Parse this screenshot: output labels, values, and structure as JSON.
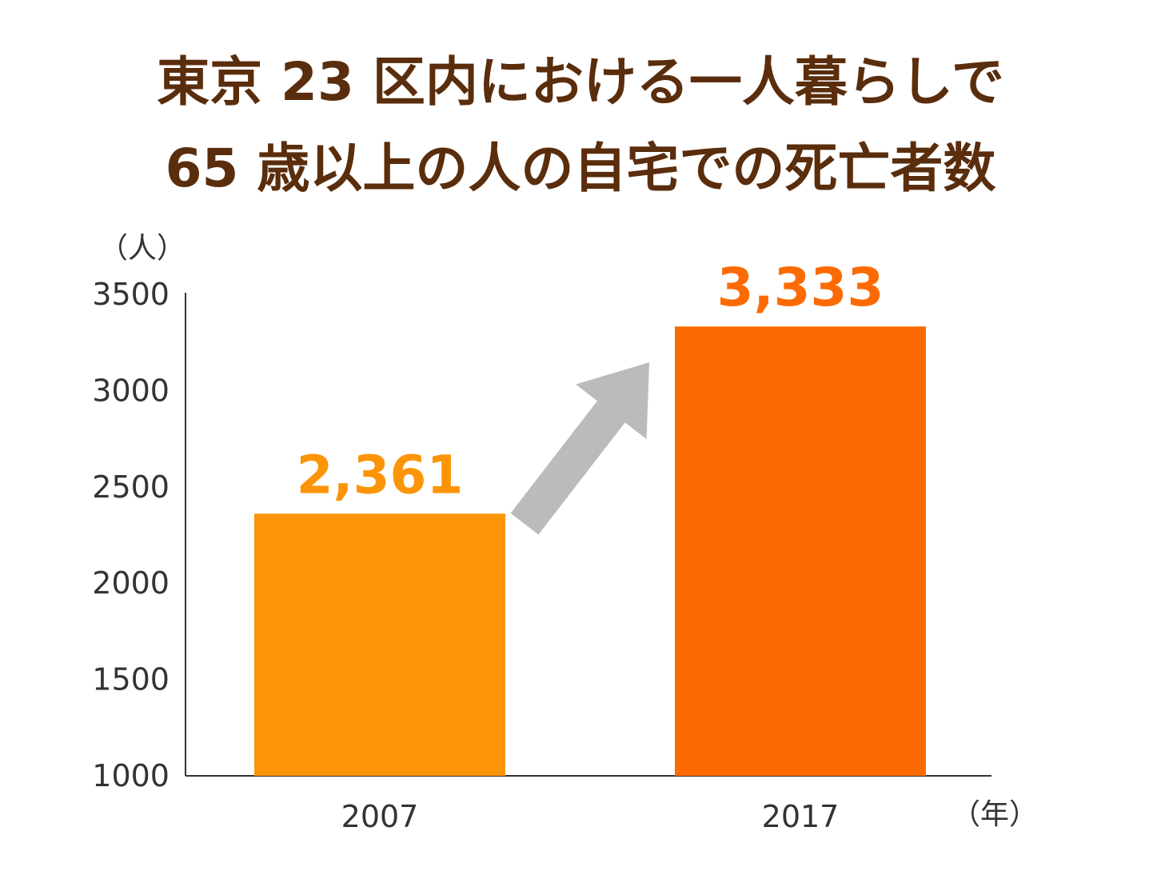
{
  "chart_data": {
    "type": "bar",
    "title_lines": [
      "東京 23 区内における一人暮らしで",
      "65 歳以上の人の自宅での死亡者数"
    ],
    "categories": [
      "2007",
      "2017"
    ],
    "values": [
      2361,
      3333
    ],
    "value_labels": [
      "2,361",
      "3,333"
    ],
    "bar_colors": [
      "#fb9507",
      "#fc6b03"
    ],
    "ylim": [
      1000,
      3500
    ],
    "yticks": [
      1000,
      1500,
      2000,
      2500,
      3000,
      3500
    ],
    "ylabel": "（人）",
    "xlabel": "（年）",
    "grid": false,
    "annotation": "upward-arrow-icon",
    "arrow_color": "#bbbbbb",
    "axis_color": "#333333",
    "title_color": "#5a2d0c"
  }
}
